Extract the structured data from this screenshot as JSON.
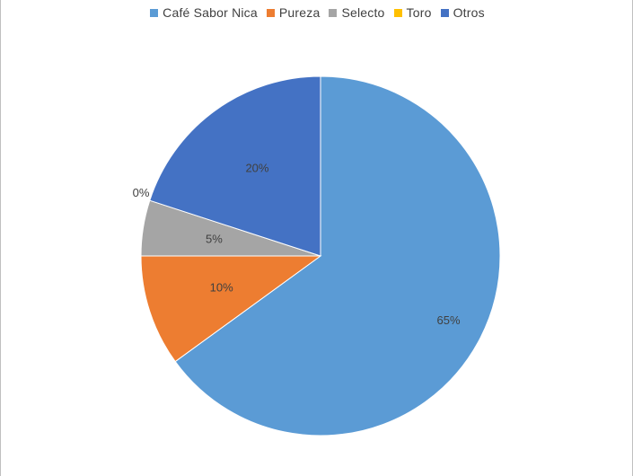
{
  "chart_data": {
    "type": "pie",
    "categories": [
      "Café Sabor Nica",
      "Pureza",
      "Selecto",
      "Toro",
      "Otros"
    ],
    "values": [
      65,
      10,
      5,
      0,
      20
    ],
    "labels": [
      "65%",
      "10%",
      "5%",
      "0%",
      "20%"
    ],
    "colors": [
      "#5b9bd5",
      "#ed7d31",
      "#a5a5a5",
      "#ffc000",
      "#4472c4"
    ],
    "legend_position": "top"
  }
}
